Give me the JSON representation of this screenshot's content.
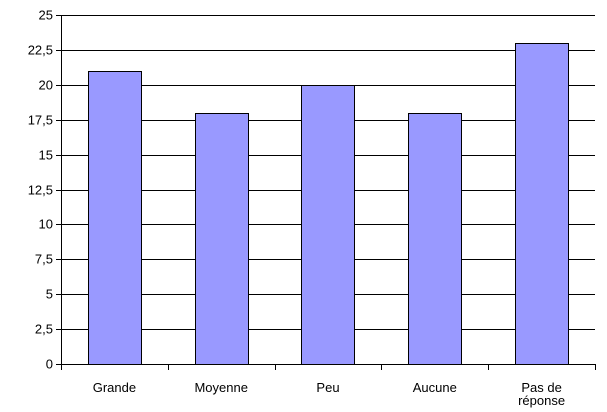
{
  "chart_data": {
    "type": "bar",
    "categories": [
      "Grande",
      "Moyenne",
      "Peu",
      "Aucune",
      "Pas de réponse"
    ],
    "category_lines": [
      [
        "Grande"
      ],
      [
        "Moyenne"
      ],
      [
        "Peu"
      ],
      [
        "Aucune"
      ],
      [
        "Pas de",
        "réponse"
      ]
    ],
    "values": [
      21,
      18,
      20,
      18,
      23
    ],
    "ylim": [
      0,
      25
    ],
    "yticks": [
      0,
      2.5,
      5,
      7.5,
      10,
      12.5,
      15,
      17.5,
      20,
      22.5,
      25
    ],
    "ytick_labels": [
      "0",
      "2,5",
      "5",
      "7,5",
      "10",
      "12,5",
      "15",
      "17,5",
      "20",
      "22,5",
      "25"
    ],
    "grid": true,
    "bar_color": "#9999ff",
    "bar_edge_color": "#000000",
    "grid_color": "#000000"
  }
}
